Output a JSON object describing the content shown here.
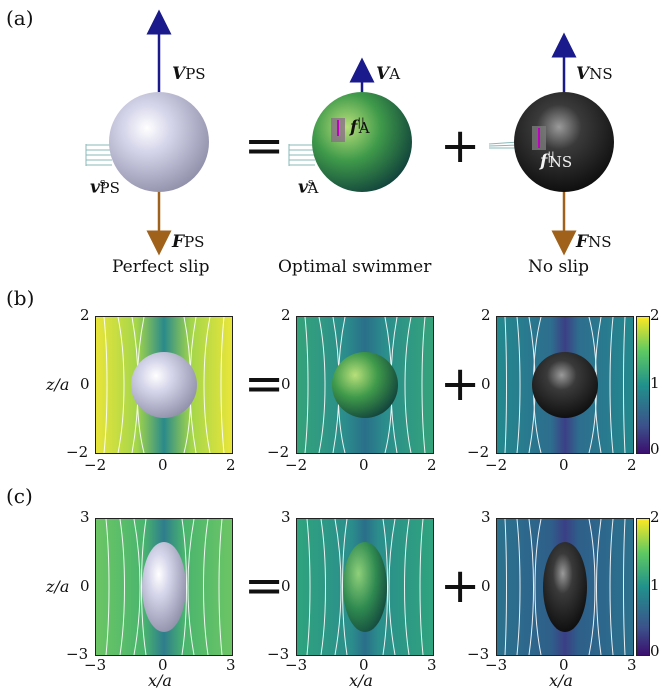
{
  "labels": {
    "a": "(a)",
    "b": "(b)",
    "c": "(c)"
  },
  "row_a": {
    "captions": [
      "Perfect slip",
      "Optimal swimmer",
      "No slip"
    ],
    "vectors": {
      "V_PS": "V",
      "V_PS_sub": "PS",
      "F_PS": "F",
      "F_PS_sub": "PS",
      "v_PS": "v",
      "v_PS_sup": "s",
      "v_PS_sub": "PS",
      "V_A": "V",
      "V_A_sub": "A",
      "f_A": "f",
      "f_A_sup": "||",
      "f_A_sub": "A",
      "v_A": "v",
      "v_A_sup": "s",
      "v_A_sub": "A",
      "V_NS": "V",
      "V_NS_sub": "NS",
      "f_NS": "f",
      "f_NS_sup": "||",
      "f_NS_sub": "NS",
      "F_NS": "F",
      "F_NS_sub": "NS"
    },
    "operators": {
      "eq": "=",
      "plus": "+"
    }
  },
  "row_b": {
    "ylabel": "z/a",
    "yticks": [
      "2",
      "0",
      "−2"
    ],
    "xticks": [
      "−2",
      "0",
      "2"
    ],
    "colorbar_ticks": [
      "2",
      "1",
      "0"
    ],
    "operators": {
      "eq": "=",
      "plus": "+"
    }
  },
  "row_c": {
    "ylabel": "z/a",
    "xlabel": "x/a",
    "yticks": [
      "3",
      "0",
      "−3"
    ],
    "xticks": [
      "−3",
      "0",
      "3"
    ],
    "colorbar_ticks": [
      "2",
      "1",
      "0"
    ],
    "operators": {
      "eq": "=",
      "plus": "+"
    }
  },
  "colors": {
    "arrow_v": "#1a1a8c",
    "arrow_f": "#a0621a",
    "sphere_ps": "#c8c8e0",
    "sphere_a": "#3f8a4a",
    "sphere_ns": "#202020",
    "cmap_low": "#3b0f70",
    "cmap_mid": "#21918c",
    "cmap_high": "#fde725"
  }
}
